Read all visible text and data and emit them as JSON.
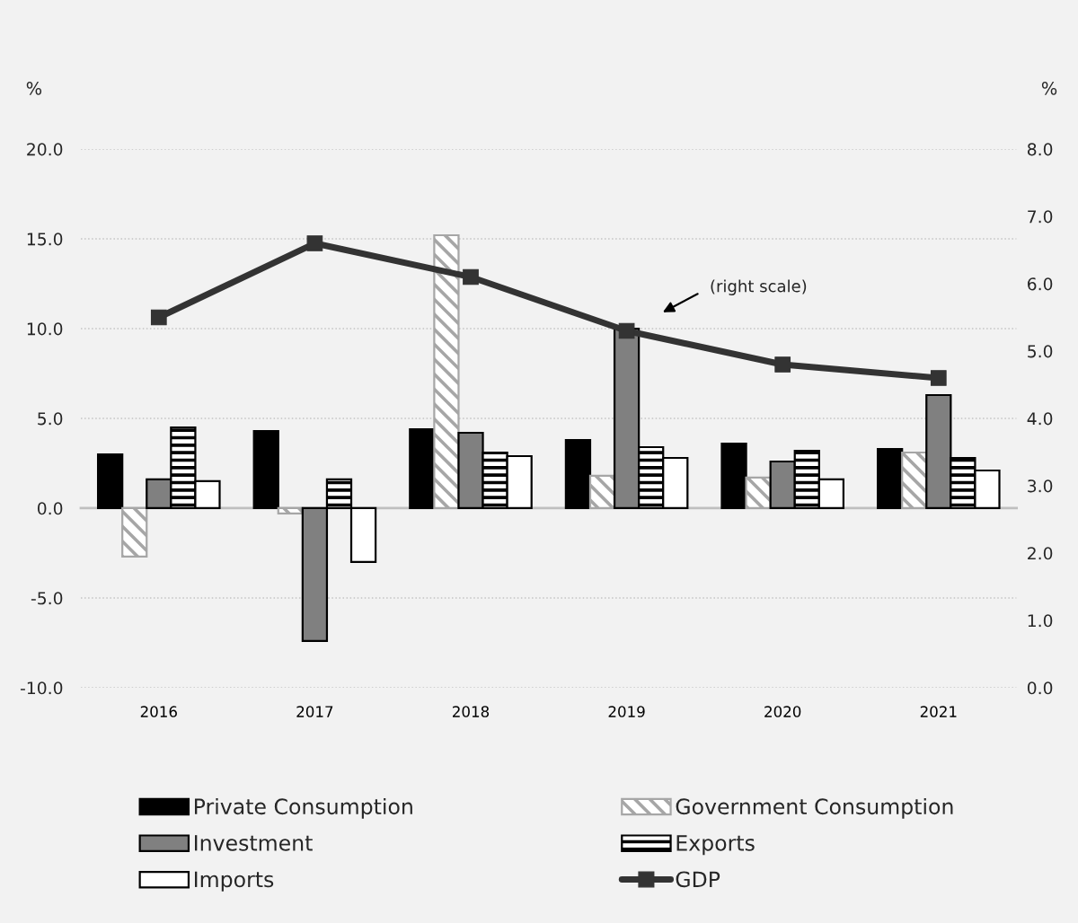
{
  "chart_data": {
    "type": "bar",
    "categories": [
      "2016",
      "2017",
      "2018",
      "2019",
      "2020",
      "2021"
    ],
    "series": [
      {
        "name": "Private Consumption",
        "color": "#000000",
        "values": [
          3.0,
          4.3,
          4.4,
          3.8,
          3.6,
          3.3
        ]
      },
      {
        "name": "Government Consumption",
        "color": "#a6a6a6",
        "values": [
          -2.7,
          -0.3,
          15.2,
          1.8,
          1.7,
          3.1
        ]
      },
      {
        "name": "Investment",
        "color": "#808080",
        "values": [
          1.6,
          -7.4,
          4.2,
          10.0,
          2.6,
          6.3
        ]
      },
      {
        "name": "Exports",
        "color": "#000000",
        "values": [
          4.5,
          1.6,
          3.1,
          3.4,
          3.2,
          2.8
        ]
      },
      {
        "name": "Imports",
        "color": "#ffffff",
        "values": [
          1.5,
          -3.0,
          2.9,
          2.8,
          1.6,
          2.1
        ]
      },
      {
        "name": "GDP",
        "type": "line",
        "axis": "y2",
        "color": "#333333",
        "values": [
          5.5,
          6.6,
          6.1,
          5.3,
          4.8,
          4.6
        ]
      }
    ],
    "ylim": [
      -10,
      20
    ],
    "yticks": [
      {
        "value": -10,
        "label": "-10.0"
      },
      {
        "value": -5,
        "label": "-5.0"
      },
      {
        "value": 0,
        "label": "0.0"
      },
      {
        "value": 5,
        "label": "5.0"
      },
      {
        "value": 10,
        "label": "10.0"
      },
      {
        "value": 15,
        "label": "15.0"
      },
      {
        "value": 20,
        "label": "20.0"
      }
    ],
    "y2lim": [
      0,
      8
    ],
    "y2ticks": [
      {
        "value": 0,
        "label": "0.0"
      },
      {
        "value": 1,
        "label": "1.0"
      },
      {
        "value": 2,
        "label": "2.0"
      },
      {
        "value": 3,
        "label": "3.0"
      },
      {
        "value": 4,
        "label": "4.0"
      },
      {
        "value": 5,
        "label": "5.0"
      },
      {
        "value": 6,
        "label": "6.0"
      },
      {
        "value": 7,
        "label": "7.0"
      },
      {
        "value": 8,
        "label": "8.0"
      }
    ],
    "ylabel": "%",
    "y2label": "%",
    "annotations": [
      "(right scale)"
    ],
    "grid": "y",
    "legend": "bottom",
    "marker": "square"
  }
}
